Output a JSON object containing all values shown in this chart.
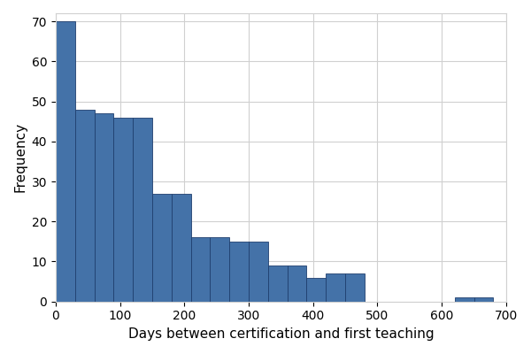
{
  "bin_width": 30,
  "bar_lefts": [
    0,
    30,
    60,
    90,
    120,
    150,
    180,
    210,
    240,
    270,
    300,
    330,
    360,
    390,
    420,
    450,
    620,
    650
  ],
  "bar_heights": [
    70,
    48,
    47,
    46,
    46,
    27,
    27,
    16,
    16,
    15,
    15,
    9,
    9,
    6,
    7,
    7,
    1,
    1
  ],
  "bar_color": "#4472a8",
  "bar_edgecolor": "#1f3f6e",
  "xlabel": "Days between certification and first teaching",
  "ylabel": "Frequency",
  "xlim": [
    0,
    700
  ],
  "ylim": [
    0,
    72
  ],
  "xticks": [
    0,
    100,
    200,
    300,
    400,
    500,
    600,
    700
  ],
  "yticks": [
    0,
    10,
    20,
    30,
    40,
    50,
    60,
    70
  ],
  "figsize": [
    6.0,
    4.0
  ],
  "dpi": 100
}
